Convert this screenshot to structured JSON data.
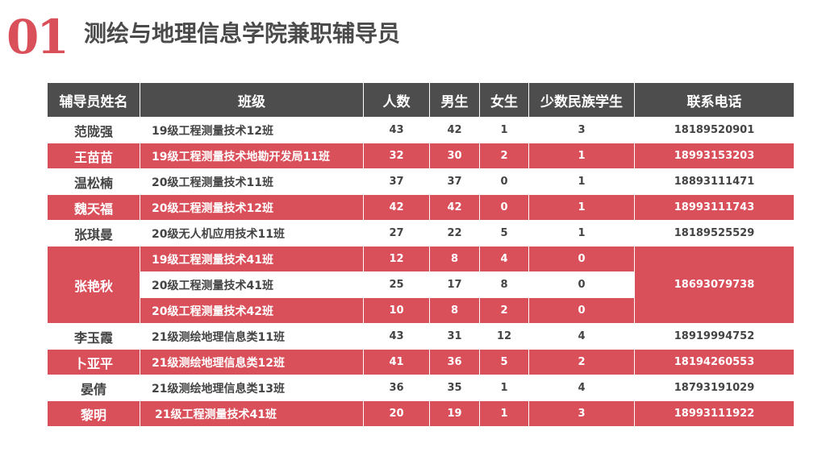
{
  "header": {
    "number": "01",
    "title": "测绘与地理信息学院兼职辅导员"
  },
  "table": {
    "columns": [
      "辅导员姓名",
      "班级",
      "人数",
      "男生",
      "女生",
      "少数民族学生",
      "联系电话"
    ],
    "rows": [
      {
        "name": "范陇强",
        "class": "19级工程测量技术12班",
        "total": "43",
        "male": "42",
        "female": "1",
        "minority": "3",
        "phone": "18189520901"
      },
      {
        "name": "王苗苗",
        "class": "19级工程测量技术地勘开发局11班",
        "total": "32",
        "male": "30",
        "female": "2",
        "minority": "1",
        "phone": "18993153203"
      },
      {
        "name": "温松楠",
        "class": "20级工程测量技术11班",
        "total": "37",
        "male": "37",
        "female": "0",
        "minority": "1",
        "phone": "18893111471"
      },
      {
        "name": "魏天福",
        "class": "20级工程测量技术12班",
        "total": "42",
        "male": "42",
        "female": "0",
        "minority": "1",
        "phone": "18993111743"
      },
      {
        "name": "张琪曼",
        "class": "20级无人机应用技术11班",
        "total": "27",
        "male": "22",
        "female": "5",
        "minority": "1",
        "phone": "18189525529"
      },
      {
        "name": "张艳秋",
        "class": "19级工程测量技术41班",
        "total": "12",
        "male": "8",
        "female": "4",
        "minority": "0",
        "phone": "18693079738"
      },
      {
        "class": "20级工程测量技术41班",
        "total": "25",
        "male": "17",
        "female": "8",
        "minority": "0"
      },
      {
        "class": "20级工程测量技术42班",
        "total": "10",
        "male": "8",
        "female": "2",
        "minority": "0"
      },
      {
        "name": "李玉霞",
        "class": "21级测绘地理信息类11班",
        "total": "43",
        "male": "31",
        "female": "12",
        "minority": "4",
        "phone": "18919994752"
      },
      {
        "name": "卜亚平",
        "class": "21级测绘地理信息类12班",
        "total": "41",
        "male": "36",
        "female": "5",
        "minority": "2",
        "phone": "18194260553"
      },
      {
        "name": "晏倩",
        "class": "21级测绘地理信息类13班",
        "total": "36",
        "male": "35",
        "female": "1",
        "minority": "4",
        "phone": "18793191029"
      },
      {
        "name": "黎明",
        "class": "21级工程测量技术41班",
        "total": "20",
        "male": "19",
        "female": "1",
        "minority": "3",
        "phone": "18993111922"
      }
    ]
  },
  "colors": {
    "accent": "#d9505a",
    "header_bg": "#4d4d4d",
    "text": "#444444"
  }
}
